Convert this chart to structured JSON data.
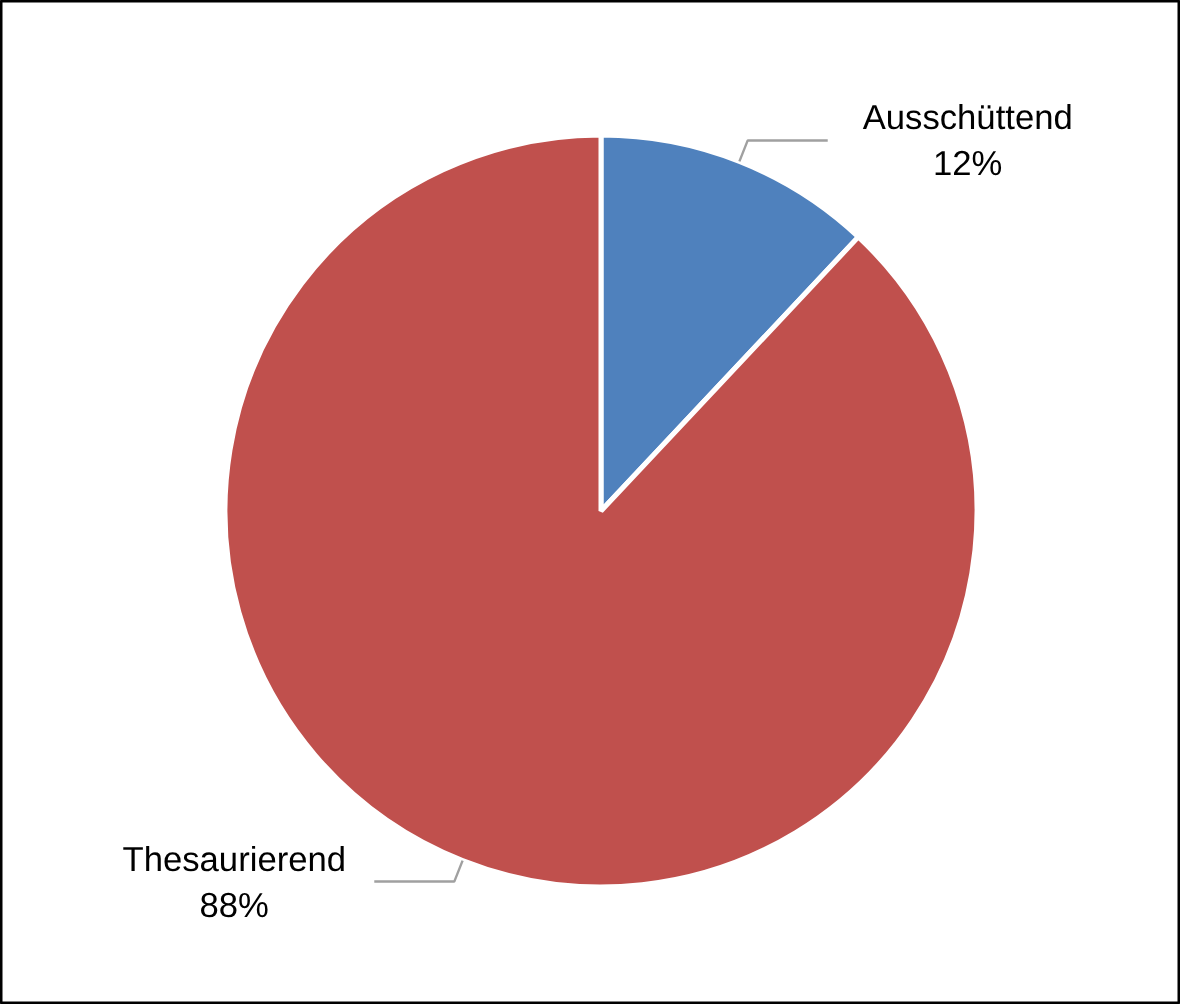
{
  "chart_data": {
    "type": "pie",
    "categories": [
      "Ausschüttend",
      "Thesaurierend"
    ],
    "values": [
      12,
      88
    ],
    "colors": [
      "#4f81bd",
      "#c0504d"
    ],
    "value_labels": [
      "12%",
      "88%"
    ],
    "legend": false
  }
}
